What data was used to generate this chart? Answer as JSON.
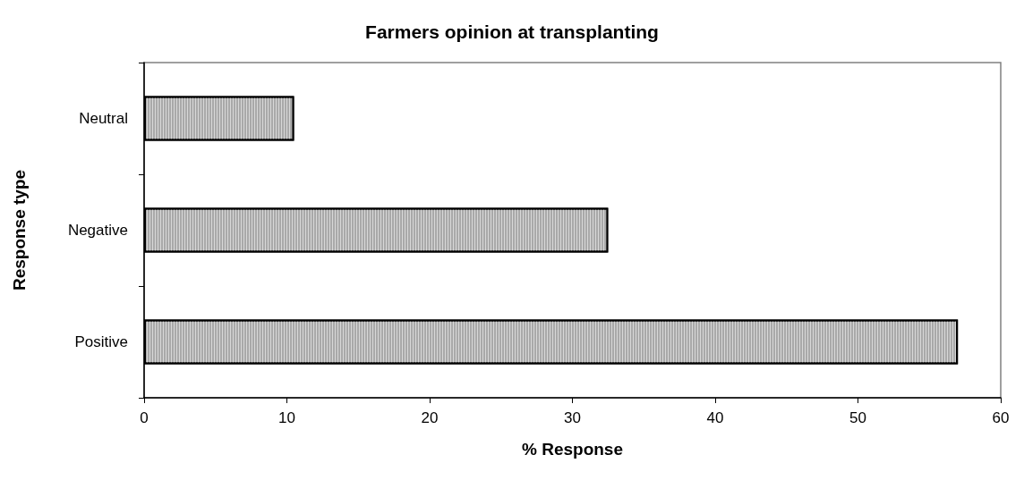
{
  "chart_data": {
    "type": "bar",
    "orientation": "horizontal",
    "title": "Farmers opinion at transplanting",
    "xlabel": "% Response",
    "ylabel": "Response type",
    "categories": [
      "Neutral",
      "Negative",
      "Positive"
    ],
    "values": [
      10.5,
      32.5,
      57
    ],
    "color": "#a9a9a9",
    "xlim": [
      0,
      60
    ],
    "xticks": [
      0,
      10,
      20,
      30,
      40,
      50,
      60
    ],
    "grid": false
  }
}
